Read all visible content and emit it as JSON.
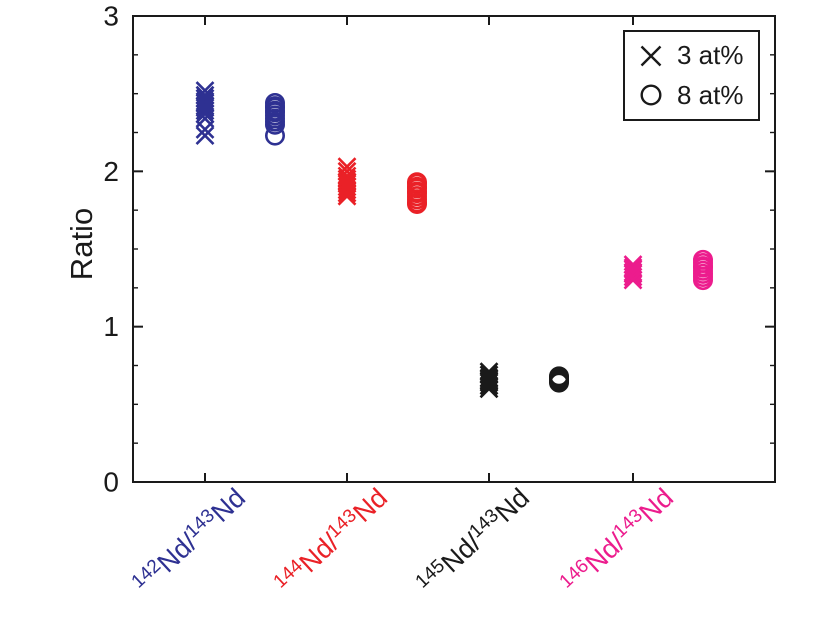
{
  "chart_data": {
    "type": "scatter",
    "title": "",
    "xlabel": "",
    "ylabel": "Ratio",
    "ylim": [
      0,
      3
    ],
    "y_major_ticks": [
      0,
      1,
      2,
      3
    ],
    "y_minor_step": 0.25,
    "grid": false,
    "legend_position": "top-right",
    "frame_color": "#1a1a1a",
    "legend": [
      {
        "marker": "x",
        "label": "3 at%"
      },
      {
        "marker": "circle",
        "label": "8 at%"
      }
    ],
    "categories": [
      {
        "sup1": "142",
        "mid": "Nd/",
        "sup2": "143",
        "end": "Nd",
        "color": "#2E3192"
      },
      {
        "sup1": "144",
        "mid": "Nd/",
        "sup2": "143",
        "end": "Nd",
        "color": "#EA2127"
      },
      {
        "sup1": "145",
        "mid": "Nd/",
        "sup2": "143",
        "end": "Nd",
        "color": "#1A1A1A"
      },
      {
        "sup1": "146",
        "mid": "Nd/",
        "sup2": "143",
        "end": "Nd",
        "color": "#EC1C8D"
      }
    ],
    "series": [
      {
        "name": "3 at%",
        "marker": "x",
        "groups": [
          [
            2.52,
            2.49,
            2.47,
            2.45,
            2.44,
            2.42,
            2.41,
            2.39,
            2.37,
            2.34,
            2.27,
            2.23
          ],
          [
            2.03,
            2.0,
            1.97,
            1.95,
            1.93,
            1.92,
            1.9,
            1.88,
            1.86,
            1.84
          ],
          [
            0.71,
            0.69,
            0.67,
            0.66,
            0.65,
            0.64,
            0.62,
            0.6
          ],
          [
            1.4,
            1.38,
            1.37,
            1.35,
            1.34,
            1.32,
            1.3
          ]
        ]
      },
      {
        "name": "8 at%",
        "marker": "circle",
        "groups": [
          [
            2.44,
            2.42,
            2.41,
            2.39,
            2.38,
            2.36,
            2.34,
            2.32,
            2.3,
            2.23
          ],
          [
            1.93,
            1.92,
            1.9,
            1.89,
            1.87,
            1.86,
            1.84,
            1.82,
            1.8,
            1.79
          ],
          [
            0.68,
            0.67,
            0.66,
            0.65,
            0.64
          ],
          [
            1.43,
            1.41,
            1.39,
            1.38,
            1.36,
            1.34,
            1.32,
            1.3
          ]
        ]
      }
    ]
  }
}
